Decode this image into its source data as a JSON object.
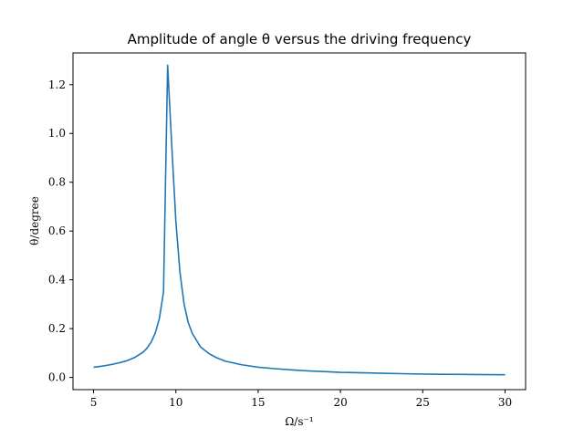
{
  "chart_data": {
    "type": "line",
    "title": "Amplitude of angle θ versus the driving frequency",
    "xlabel": "Ω/s⁻¹",
    "ylabel": "θ/degree",
    "xlim": [
      3.75,
      31.25
    ],
    "ylim": [
      -0.05,
      1.33
    ],
    "xticks": [
      5,
      10,
      15,
      20,
      25,
      30
    ],
    "yticks": [
      0.0,
      0.2,
      0.4,
      0.6,
      0.8,
      1.0,
      1.2
    ],
    "ytick_labels": [
      "0.0",
      "0.2",
      "0.4",
      "0.6",
      "0.8",
      "1.0",
      "1.2"
    ],
    "grid": false,
    "color": "#1f77b4",
    "series": [
      {
        "x": [
          5.0,
          5.5,
          6.0,
          6.5,
          7.0,
          7.5,
          8.0,
          8.25,
          8.5,
          8.75,
          9.0,
          9.25,
          9.5,
          9.75,
          10.0,
          10.25,
          10.5,
          10.75,
          11.0,
          11.5,
          12.0,
          12.5,
          13.0,
          14.0,
          15.0,
          16.0,
          17.0,
          18.0,
          19.0,
          20.0,
          22.0,
          24.0,
          26.0,
          28.0,
          30.0
        ],
        "y": [
          0.042,
          0.046,
          0.052,
          0.059,
          0.068,
          0.082,
          0.103,
          0.12,
          0.145,
          0.182,
          0.242,
          0.35,
          1.28,
          0.95,
          0.64,
          0.43,
          0.3,
          0.225,
          0.18,
          0.125,
          0.098,
          0.08,
          0.067,
          0.052,
          0.042,
          0.036,
          0.031,
          0.027,
          0.024,
          0.021,
          0.018,
          0.015,
          0.013,
          0.012,
          0.011
        ]
      }
    ]
  }
}
